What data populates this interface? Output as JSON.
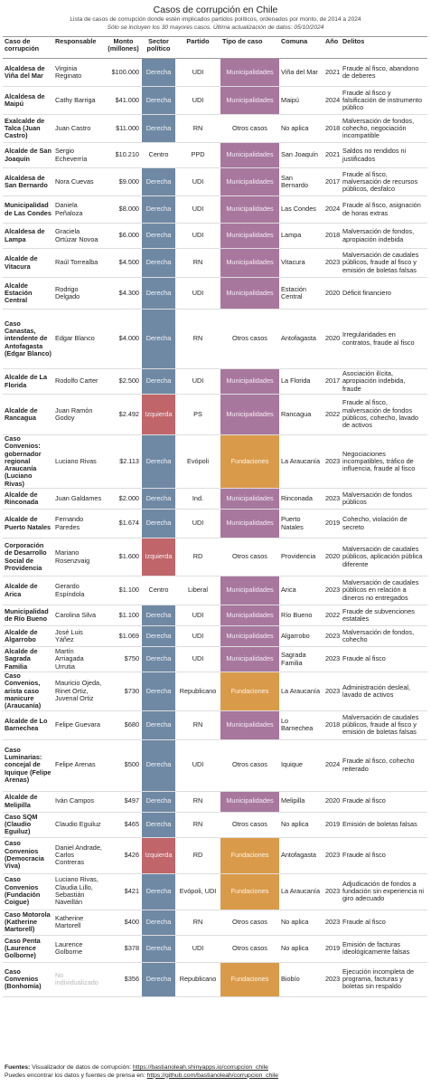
{
  "header": {
    "title": "Casos de corrupción en Chile",
    "subtitle": "Lista de casos de corrupción donde estén implicados partidos políticos, ordenados por monto, de 2014 a 2024",
    "note": "Sólo se incluyen los 30 mayores casos. Última actualización de datos: 05/10/2024"
  },
  "columns": {
    "caso": "Caso de corrupción",
    "responsable": "Responsable",
    "monto": "Monto (millones)",
    "sector": "Sector político",
    "partido": "Partido",
    "tipo": "Tipo de caso",
    "comuna": "Comuna",
    "anio": "Año",
    "delitos": "Delitos"
  },
  "colors": {
    "derecha": "#6f89a5",
    "izquierda": "#c0656a",
    "municipalidades": "#a8779e",
    "fundaciones": "#d99b4a"
  },
  "rows": [
    {
      "caso": "Alcaldesa de Viña del Mar",
      "responsable": "Virginia Reginato",
      "monto": "$100.000",
      "sector": "Derecha",
      "partido": "UDI",
      "tipo": "Municipalidades",
      "comuna": "Viña del Mar",
      "anio": "2021",
      "delitos": "Fraude al fisco, abandono de deberes"
    },
    {
      "caso": "Alcaldesa de Maipú",
      "responsable": "Cathy Barriga",
      "monto": "$41.000",
      "sector": "Derecha",
      "partido": "UDI",
      "tipo": "Municipalidades",
      "comuna": "Maipú",
      "anio": "2024",
      "delitos": "Fraude al fisco y falsificación de instrumento público"
    },
    {
      "caso": "Exalcalde de Talca (Juan Castro)",
      "responsable": "Juan Castro",
      "monto": "$11.000",
      "sector": "Derecha",
      "partido": "RN",
      "tipo": "Otros casos",
      "comuna": "No aplica",
      "anio": "2018",
      "delitos": "Malversación de fondos, cohecho, negociación incompatible"
    },
    {
      "caso": "Alcalde de San Joaquín",
      "responsable": "Sergio Echeverría",
      "monto": "$10.210",
      "sector": "Centro",
      "partido": "PPD",
      "tipo": "Municipalidades",
      "comuna": "San Joaquín",
      "anio": "2021",
      "delitos": "Saldos no rendidos ni justificados"
    },
    {
      "caso": "Alcaldesa de San Bernardo",
      "responsable": "Nora Cuevas",
      "monto": "$9.000",
      "sector": "Derecha",
      "partido": "UDI",
      "tipo": "Municipalidades",
      "comuna": "San Bernardo",
      "anio": "2017",
      "delitos": "Fraude al fisco, malversación de recursos públicos, desfalco"
    },
    {
      "caso": "Municipalidad de Las Condes",
      "responsable": "Daniela Peñaloza",
      "monto": "$8.000",
      "sector": "Derecha",
      "partido": "UDI",
      "tipo": "Municipalidades",
      "comuna": "Las Condes",
      "anio": "2024",
      "delitos": "Fraude al fisco, asignación de horas extras"
    },
    {
      "caso": "Alcaldesa de Lampa",
      "responsable": "Graciela Ortúzar Novoa",
      "monto": "$6.000",
      "sector": "Derecha",
      "partido": "UDI",
      "tipo": "Municipalidades",
      "comuna": "Lampa",
      "anio": "2018",
      "delitos": "Malversación de fondos, apropiación indebida"
    },
    {
      "caso": "Alcalde de Vitacura",
      "responsable": "Raúl Torrealba",
      "monto": "$4.500",
      "sector": "Derecha",
      "partido": "RN",
      "tipo": "Municipalidades",
      "comuna": "Vitacura",
      "anio": "2023",
      "delitos": "Malversación de caudales públicos, fraude al fisco y emisión de boletas falsas"
    },
    {
      "caso": "Alcalde Estación Central",
      "responsable": "Rodrigo Delgado",
      "monto": "$4.300",
      "sector": "Derecha",
      "partido": "UDI",
      "tipo": "Municipalidades",
      "comuna": "Estación Central",
      "anio": "2020",
      "delitos": "Déficit financiero"
    },
    {
      "caso": "Caso Canastas, intendente de Antofagasta (Edgar Blanco)",
      "responsable": "Edgar Blanco",
      "monto": "$4.000",
      "sector": "Derecha",
      "partido": "RN",
      "tipo": "Otros casos",
      "comuna": "Antofagasta",
      "anio": "2020",
      "delitos": "Irregularidades en contratos, fraude al fisco"
    },
    {
      "caso": "Alcalde de La Florida",
      "responsable": "Rodolfo Carter",
      "monto": "$2.500",
      "sector": "Derecha",
      "partido": "UDI",
      "tipo": "Municipalidades",
      "comuna": "La Florida",
      "anio": "2017",
      "delitos": "Asociación ilícita, apropiación indebida, fraude"
    },
    {
      "caso": "Alcalde de Rancagua",
      "responsable": "Juan Ramón Godoy",
      "monto": "$2.492",
      "sector": "Izquierda",
      "partido": "PS",
      "tipo": "Municipalidades",
      "comuna": "Rancagua",
      "anio": "2022",
      "delitos": "Fraude al fisco, malversación de fondos públicos, cohecho, lavado de activos"
    },
    {
      "caso": "Caso Convenios: gobernador regional Araucanía (Luciano Rivas)",
      "responsable": "Luciano Rivas",
      "monto": "$2.113",
      "sector": "Derecha",
      "partido": "Evópoli",
      "tipo": "Fundaciones",
      "comuna": "La Araucanía",
      "anio": "2023",
      "delitos": "Negociaciones incompatibles, tráfico de influencia, fraude al fisco"
    },
    {
      "caso": "Alcalde de Rinconada",
      "responsable": "Juan Galdames",
      "monto": "$2.000",
      "sector": "Derecha",
      "partido": "Ind.",
      "tipo": "Municipalidades",
      "comuna": "Rinconada",
      "anio": "2023",
      "delitos": "Malversación de fondos públicos"
    },
    {
      "caso": "Alcalde de Puerto Natales",
      "responsable": "Fernando Paredes",
      "monto": "$1.674",
      "sector": "Derecha",
      "partido": "UDI",
      "tipo": "Municipalidades",
      "comuna": "Puerto Natales",
      "anio": "2019",
      "delitos": "Cohecho, violación de secreto"
    },
    {
      "caso": "Corporación de Desarrollo Social de Providencia",
      "responsable": "Mariano Rosenzvaig",
      "monto": "$1.600",
      "sector": "Izquierda",
      "partido": "RD",
      "tipo": "Otros casos",
      "comuna": "Providencia",
      "anio": "2020",
      "delitos": "Malversación de caudales públicos, aplicación pública diferente"
    },
    {
      "caso": "Alcalde de Arica",
      "responsable": "Gerardo Espíndola",
      "monto": "$1.100",
      "sector": "Centro",
      "partido": "Liberal",
      "tipo": "Municipalidades",
      "comuna": "Arica",
      "anio": "2023",
      "delitos": "Malversación de caudales públicos en relación a dineros no entregados"
    },
    {
      "caso": "Municipalidad de Río Bueno",
      "responsable": "Carolina Silva",
      "monto": "$1.100",
      "sector": "Derecha",
      "partido": "UDI",
      "tipo": "Municipalidades",
      "comuna": "Río Bueno",
      "anio": "2022",
      "delitos": "Fraude de subvenciones estatales"
    },
    {
      "caso": "Alcalde de Algarrobo",
      "responsable": "José Luis Yáñez",
      "monto": "$1.069",
      "sector": "Derecha",
      "partido": "UDI",
      "tipo": "Municipalidades",
      "comuna": "Algarrobo",
      "anio": "2023",
      "delitos": "Malversación de fondos, cohecho"
    },
    {
      "caso": "Alcalde de Sagrada Familia",
      "responsable": "Martín Arriagada Urrutia",
      "monto": "$750",
      "sector": "Derecha",
      "partido": "UDI",
      "tipo": "Municipalidades",
      "comuna": "Sagrada Familia",
      "anio": "2023",
      "delitos": "Fraude al fisco"
    },
    {
      "caso": "Caso Convenios, arista caso manicure (Araucanía)",
      "responsable": "Mauricio Ojeda, Rinet Ortiz, Juvenal Ortiz",
      "monto": "$730",
      "sector": "Derecha",
      "partido": "Republicano",
      "tipo": "Fundaciones",
      "comuna": "La Araucanía",
      "anio": "2023",
      "delitos": "Administración desleal, lavado de activos"
    },
    {
      "caso": "Alcalde de Lo Barnechea",
      "responsable": "Felipe Guevara",
      "monto": "$680",
      "sector": "Derecha",
      "partido": "RN",
      "tipo": "Municipalidades",
      "comuna": "Lo Barnechea",
      "anio": "2018",
      "delitos": "Malversación de caudales públicos, fraude al fisco y emisión de boletas falsas"
    },
    {
      "caso": "Caso Luminarias: concejal de Iquique (Felipe Arenas)",
      "responsable": "Felipe Arenas",
      "monto": "$500",
      "sector": "Derecha",
      "partido": "UDI",
      "tipo": "Otros casos",
      "comuna": "Iquique",
      "anio": "2024",
      "delitos": "Fraude al fisco, cohecho reiterado"
    },
    {
      "caso": "Alcalde de Melipilla",
      "responsable": "Iván Campos",
      "monto": "$497",
      "sector": "Derecha",
      "partido": "RN",
      "tipo": "Municipalidades",
      "comuna": "Melipilla",
      "anio": "2020",
      "delitos": "Fraude al fisco"
    },
    {
      "caso": "Caso SQM (Claudio Eguiluz)",
      "responsable": "Claudio Eguiluz",
      "monto": "$465",
      "sector": "Derecha",
      "partido": "RN",
      "tipo": "Otros casos",
      "comuna": "No aplica",
      "anio": "2019",
      "delitos": "Emisión de boletas falsas"
    },
    {
      "caso": "Caso Convenios (Democracia Viva)",
      "responsable": "Daniel Andrade, Carlos Contreras",
      "monto": "$426",
      "sector": "Izquierda",
      "partido": "RD",
      "tipo": "Fundaciones",
      "comuna": "Antofagasta",
      "anio": "2023",
      "delitos": "Fraude al fisco"
    },
    {
      "caso": "Caso Convenios (Fundación Coigue)",
      "responsable": "Luciano Rivas, Claudia Lillo, Sebastián Naveillán",
      "monto": "$421",
      "sector": "Derecha",
      "partido": "Evópoli, UDI",
      "tipo": "Fundaciones",
      "comuna": "La Araucanía",
      "anio": "2023",
      "delitos": "Adjudicación de fondos a fundación sin experiencia ni giro adecuado"
    },
    {
      "caso": "Caso Motorola (Katherine Martorell)",
      "responsable": "Katherine Martorell",
      "monto": "$400",
      "sector": "Derecha",
      "partido": "RN",
      "tipo": "Otros casos",
      "comuna": "No aplica",
      "anio": "2023",
      "delitos": "Fraude al fisco"
    },
    {
      "caso": "Caso Penta (Laurence Golborne)",
      "responsable": "Laurence Golborne",
      "monto": "$378",
      "sector": "Derecha",
      "partido": "UDI",
      "tipo": "Otros casos",
      "comuna": "No aplica",
      "anio": "2019",
      "delitos": "Emisión de facturas ideológicamente falsas"
    },
    {
      "caso": "Caso Convenios (Bonhomía)",
      "responsable": "No individualizado",
      "monto": "$356",
      "sector": "Derecha",
      "partido": "Republicano",
      "tipo": "Fundaciones",
      "comuna": "Biobío",
      "anio": "2023",
      "delitos": "Ejecución incompleta de programa, facturas y boletas sin respaldo"
    }
  ],
  "footer": {
    "fuentes_label": "Fuentes:",
    "line1": " Visualizador de datos de corrupción: ",
    "link1": "https://bastianoleah.shinyapps.io/corrupcion_chile",
    "line2": "Puedes encontrar los datos y fuentes de prensa en: ",
    "link2": "https://github.com/bastianoleah/corrupcion_chile"
  }
}
